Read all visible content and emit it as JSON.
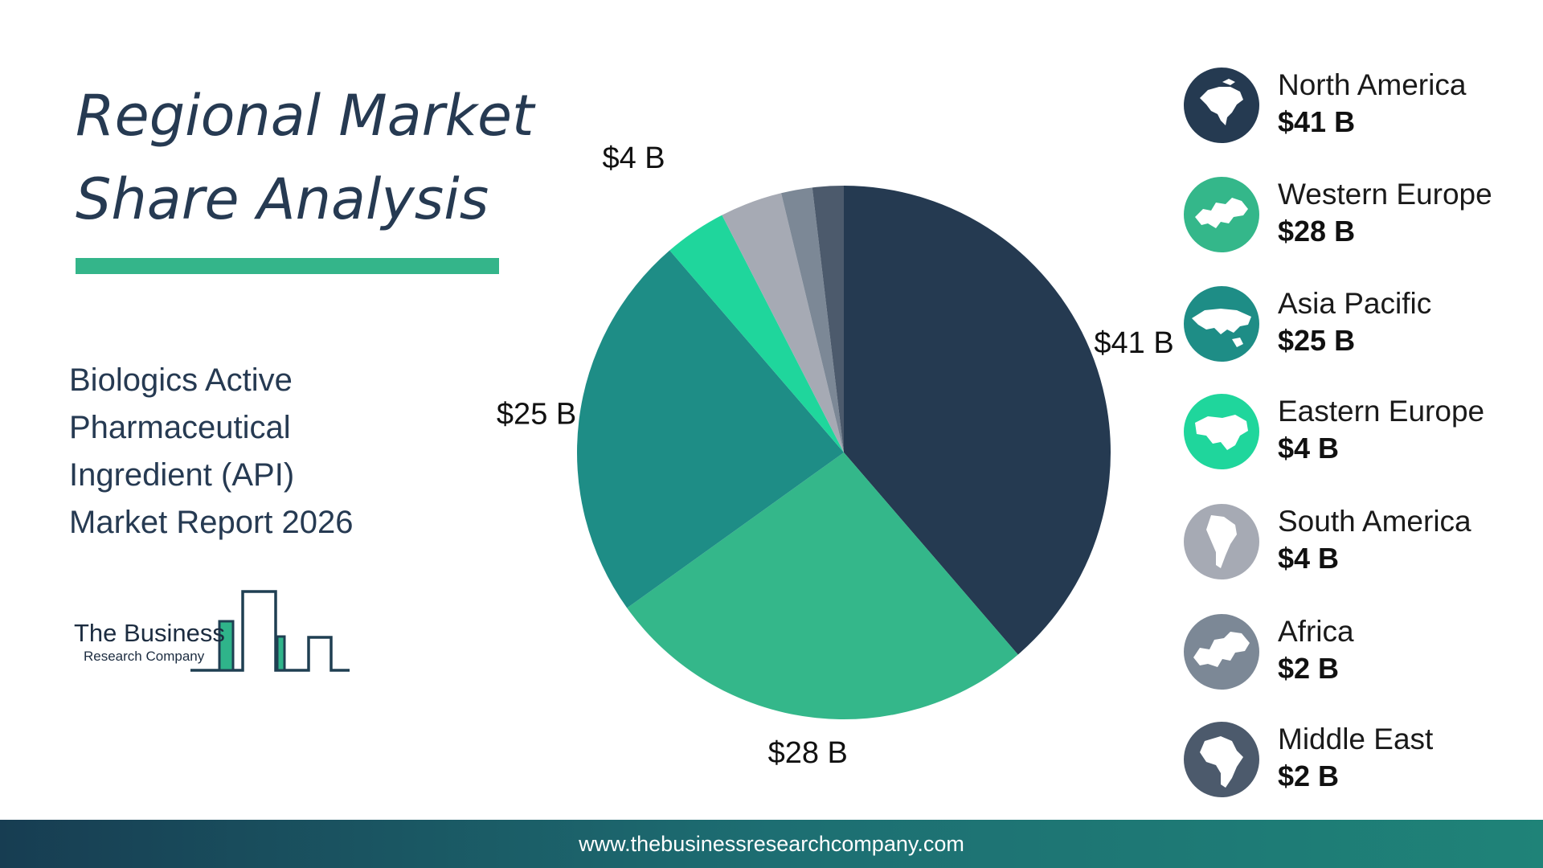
{
  "header": {
    "title_line1": "Regional Market",
    "title_line2": "Share Analysis",
    "subtitle_lines": [
      "Biologics Active",
      "Pharmaceutical",
      "Ingredient (API)",
      "Market Report 2026"
    ]
  },
  "logo": {
    "name": "The Business",
    "sub": "Research Company"
  },
  "colors": {
    "title": "#263a52",
    "accent": "#34b58a"
  },
  "chart_data": {
    "type": "pie",
    "start": "12 o'clock, clockwise",
    "categories": [
      "North America",
      "Western Europe",
      "Asia Pacific",
      "Eastern Europe",
      "South America",
      "Africa",
      "Middle East"
    ],
    "values": [
      41,
      28,
      25,
      4,
      4,
      2,
      2
    ],
    "unit": "$ B",
    "data_labels": [
      "$41 B",
      "$28 B",
      "$25 B",
      "$4 B",
      "$4 B",
      "$2 B",
      "$2 B"
    ],
    "colors": [
      "#253a51",
      "#34b78a",
      "#1e8d86",
      "#1fd69c",
      "#a6aab4",
      "#7c8896",
      "#4c5a6c"
    ],
    "legend_placement": "right"
  },
  "legend": {
    "items": [
      {
        "name": "North America",
        "value": "$41 B",
        "color": "#253a51",
        "icon": "north-america-icon"
      },
      {
        "name": "Western Europe",
        "value": "$28 B",
        "color": "#34b78a",
        "icon": "europe-icon"
      },
      {
        "name": "Asia Pacific",
        "value": "$25 B",
        "color": "#1e8d86",
        "icon": "asia-icon"
      },
      {
        "name": "Eastern Europe",
        "value": "$4 B",
        "color": "#1fd69c",
        "icon": "middle-east-map-icon"
      },
      {
        "name": "South America",
        "value": "$4 B",
        "color": "#a6aab4",
        "icon": "south-america-icon"
      },
      {
        "name": "Africa",
        "value": "$2 B",
        "color": "#7c8896",
        "icon": "europe-map-icon"
      },
      {
        "name": "Middle East",
        "value": "$2 B",
        "color": "#4c5a6c",
        "icon": "africa-icon"
      }
    ]
  },
  "footer": {
    "url": "www.thebusinessresearchcompany.com"
  }
}
